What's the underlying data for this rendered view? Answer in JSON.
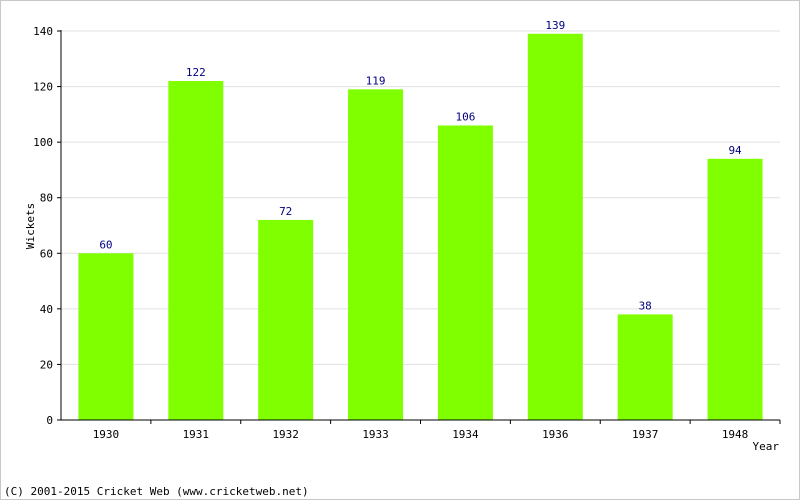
{
  "chart_data": {
    "type": "bar",
    "categories": [
      "1930",
      "1931",
      "1932",
      "1933",
      "1934",
      "1936",
      "1937",
      "1948"
    ],
    "values": [
      60,
      122,
      72,
      119,
      106,
      139,
      38,
      94
    ],
    "xlabel": "Year",
    "ylabel": "Wickets",
    "ylim": [
      0,
      140
    ],
    "yticks": [
      0,
      20,
      40,
      60,
      80,
      100,
      120,
      140
    ],
    "grid": true,
    "bar_color": "#80ff00",
    "data_label_color": "#000080"
  },
  "footer": {
    "copyright": "(C) 2001-2015 Cricket Web (www.cricketweb.net)"
  }
}
